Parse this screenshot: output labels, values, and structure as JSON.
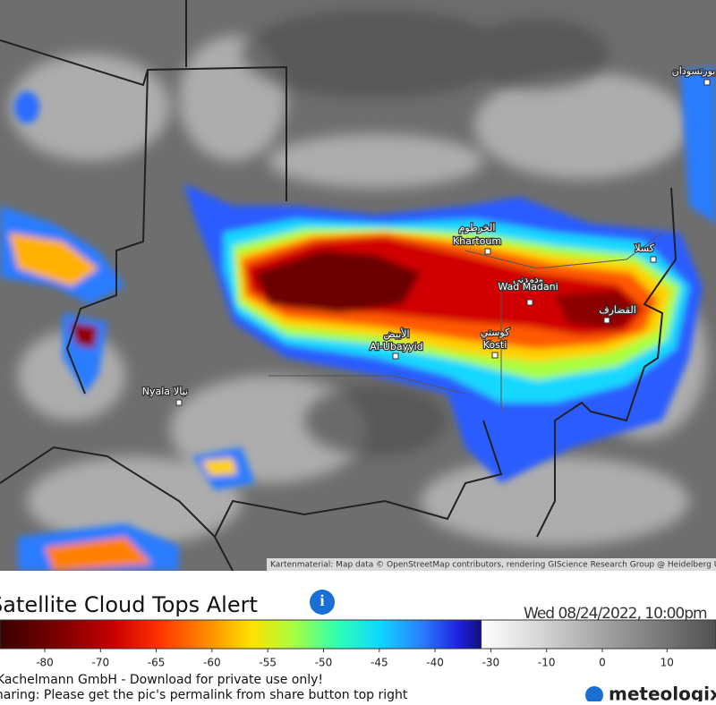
{
  "map": {
    "attribution": "Kartenmaterial: Map data © OpenStreetMap contributors, rendering GIScience Research Group @ Heidelberg University",
    "cities": [
      {
        "label": "Khartoum",
        "label_local": "الخرطوم"
      },
      {
        "label": "Wad Madani",
        "label_local": "ودمدني"
      },
      {
        "label": "Al-Ubayyid",
        "label_local": "الأبيض"
      },
      {
        "label": "Kosti",
        "label_local": "كوستي"
      },
      {
        "label": "Nyala",
        "label_local": "نيالا"
      },
      {
        "label_local": "القضارف"
      },
      {
        "label_local": "كسلا"
      },
      {
        "label_local": "بورتسودان"
      }
    ]
  },
  "legend": {
    "title": "Satellite Cloud Tops Alert",
    "timestamp": "Wed 08/24/2022, 10:00pm",
    "ticks": [
      -80,
      -70,
      -65,
      -60,
      -55,
      -50,
      -45,
      -40,
      -30,
      -10,
      0,
      10
    ]
  },
  "footer": {
    "notice": "Kachelmann GmbH - Download for private use only!",
    "sharing": "Sharing: Please get the pic's permalink from share button top right",
    "logo": "meteologix"
  }
}
